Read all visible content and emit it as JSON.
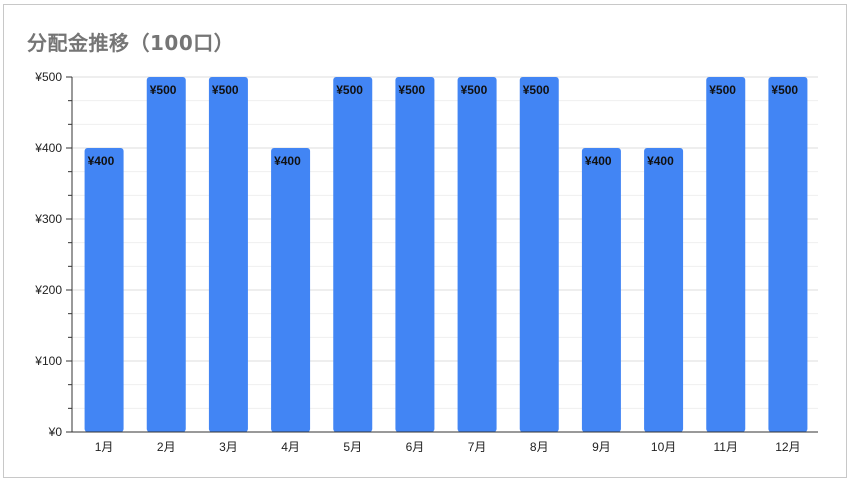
{
  "chart_data": {
    "type": "bar",
    "title": "分配金推移（100口）",
    "categories": [
      "1月",
      "2月",
      "3月",
      "4月",
      "5月",
      "6月",
      "7月",
      "8月",
      "9月",
      "10月",
      "11月",
      "12月"
    ],
    "values": [
      400,
      500,
      500,
      400,
      500,
      500,
      500,
      500,
      400,
      400,
      500,
      500
    ],
    "value_labels": [
      "¥400",
      "¥500",
      "¥500",
      "¥400",
      "¥500",
      "¥500",
      "¥500",
      "¥500",
      "¥400",
      "¥400",
      "¥500",
      "¥500"
    ],
    "yticks": [
      0,
      100,
      200,
      300,
      400,
      500
    ],
    "ytick_labels": [
      "¥0",
      "¥100",
      "¥200",
      "¥300",
      "¥400",
      "¥500"
    ],
    "ylim": [
      0,
      500
    ],
    "xlabel": "",
    "ylabel": "",
    "bar_color": "#4285f4",
    "grid": true,
    "legend": "none"
  }
}
